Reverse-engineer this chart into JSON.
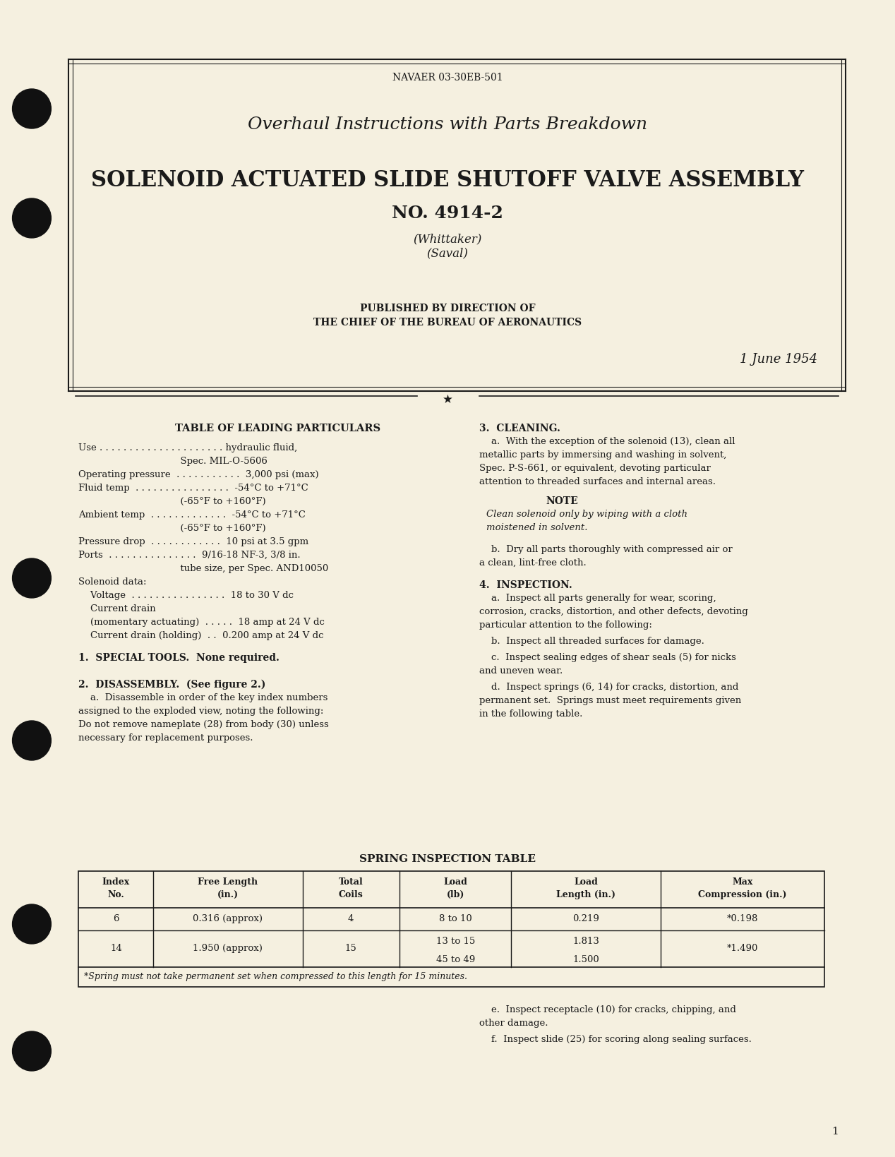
{
  "bg_color": "#f5f0e0",
  "text_color": "#1a1a1a",
  "page_num": "1",
  "header_doc_num": "NAVAER 03-30EB-501",
  "title1": "Overhaul Instructions with Parts Breakdown",
  "title2": "SOLENOID ACTUATED SLIDE SHUTOFF VALVE ASSEMBLY",
  "title3": "NO. 4914-2",
  "title4": "(Whittaker)",
  "title5": "(Saval)",
  "published_line1": "PUBLISHED BY DIRECTION OF",
  "published_line2": "THE CHIEF OF THE BUREAU OF AERONAUTICS",
  "date": "1 June 1954",
  "table_title": "TABLE OF LEADING PARTICULARS",
  "left_col": [
    "Use . . . . . . . . . . . . . . . . . . . . . hydraulic fluid,",
    "                                  Spec. MIL-O-5606",
    "Operating pressure  . . . . . . . . . . .  3,000 psi (max)",
    "Fluid temp  . . . . . . . . . . . . . . . .  -54°C to +71°C",
    "                                  (-65°F to +160°F)",
    "Ambient temp  . . . . . . . . . . . . . .  -54°C to +71°C",
    "                                  (-65°F to +160°F)",
    "Pressure drop  . . . . . . . . . . . . .  10 psi at 3.5 gpm",
    "Ports  . . . . . . . . . . . . . . .  9/16-18 NF-3, 3/8 in.",
    "                                  tube size, per Spec. AND10050",
    "Solenoid data:",
    "    Voltage  . . . . . . . . . . . . . . . .  18 to 30 V dc",
    "    Current drain",
    "    (momentary actuating)  . . . . .  18 amp at 24 V dc",
    "    Current drain (holding)  . .  0.200 amp at 24 V dc"
  ],
  "section1_title": "1.  SPECIAL TOOLS.  None required.",
  "section2_title": "2.  DISASSEMBLY.  (See figure 2.)",
  "section2_body": "    a.  Disassemble in order of the key index numbers\nassigned to the exploded view, noting the following:\nDo not remove nameplate (28) from body (30) unless\nnecessary for replacement purposes.",
  "section3_title": "3.  CLEANING.",
  "section3a": "    a.  With the exception of the solenoid (13), clean all\nmetallic parts by immersing and washing in solvent,\nSpec. P-S-661, or equivalent, devoting particular\nattention to threaded surfaces and internal areas.",
  "note_title": "NOTE",
  "note_body": "Clean solenoid only by wiping with a cloth\nmoistened in solvent.",
  "section3b": "    b.  Dry all parts thoroughly with compressed air or\na clean, lint-free cloth.",
  "section4_title": "4.  INSPECTION.",
  "section4a": "    a.  Inspect all parts generally for wear, scoring,\ncorrosion, cracks, distortion, and other defects, devoting\nparticular attention to the following:",
  "section4b": "    b.  Inspect all threaded surfaces for damage.",
  "section4c": "    c.  Inspect sealing edges of shear seals (5) for nicks\nand uneven wear.",
  "section4d": "    d.  Inspect springs (6, 14) for cracks, distortion, and\npermanent set.  Springs must meet requirements given\nin the following table.",
  "spring_table_title": "SPRING INSPECTION TABLE",
  "spring_table_headers": [
    "Index\nNo.",
    "Free Length\n(in.)",
    "Total\nCoils",
    "Load\n(lb)",
    "Load\nLength (in.)",
    "Max\nCompression (in.)"
  ],
  "spring_table_rows": [
    [
      "6",
      "0.316 (approx)",
      "4",
      "8 to 10",
      "0.219",
      "*0.198"
    ],
    [
      "14",
      "1.950 (approx)",
      "15",
      "13 to 15\n45 to 49",
      "1.813\n1.500",
      "*1.490"
    ]
  ],
  "spring_footnote": "*Spring must not take permanent set when compressed to this length for 15 minutes.",
  "section4e": "    e.  Inspect receptacle (10) for cracks, chipping, and\nother damage.",
  "section4f": "    f.  Inspect slide (25) for scoring along sealing surfaces."
}
